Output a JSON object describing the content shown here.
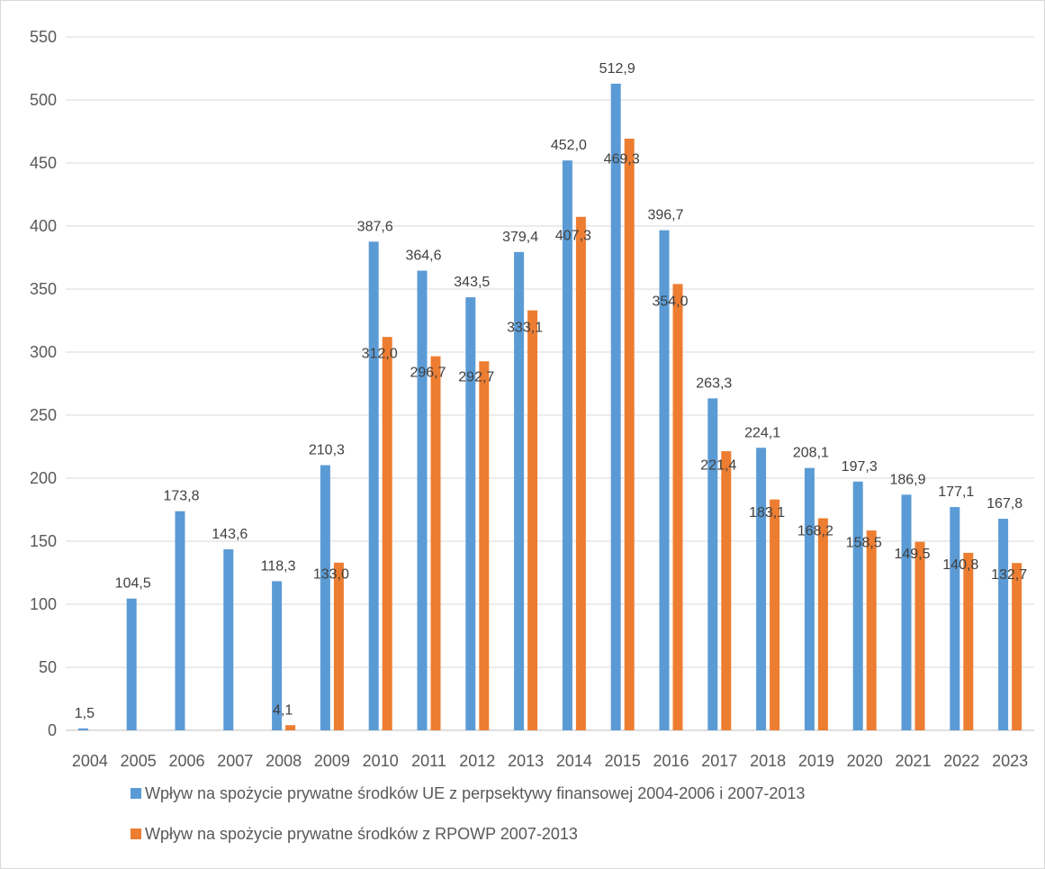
{
  "chart_data": {
    "type": "bar",
    "categories": [
      "2004",
      "2005",
      "2006",
      "2007",
      "2008",
      "2009",
      "2010",
      "2011",
      "2012",
      "2013",
      "2014",
      "2015",
      "2016",
      "2017",
      "2018",
      "2019",
      "2020",
      "2021",
      "2022",
      "2023"
    ],
    "series": [
      {
        "name": "Wpływ na spożycie prywatne środków UE z perpsektywy finansowej 2004-2006 i 2007-2013",
        "color": "#5b9bd5",
        "values": [
          1.5,
          104.5,
          173.8,
          143.6,
          118.3,
          210.3,
          387.6,
          364.6,
          343.5,
          379.4,
          452.0,
          512.9,
          396.7,
          263.3,
          224.1,
          208.1,
          197.3,
          186.9,
          177.1,
          167.8
        ],
        "labels": [
          "1,5",
          "104,5",
          "173,8",
          "143,6",
          "118,3",
          "210,3",
          "387,6",
          "364,6",
          "343,5",
          "379,4",
          "452,0",
          "512,9",
          "396,7",
          "263,3",
          "224,1",
          "208,1",
          "197,3",
          "186,9",
          "177,1",
          "167,8"
        ]
      },
      {
        "name": "Wpływ na spożycie prywatne środków z RPOWP 2007-2013",
        "color": "#ed7d31",
        "values": [
          null,
          null,
          null,
          null,
          4.1,
          133.0,
          312.0,
          296.7,
          292.7,
          333.1,
          407.3,
          469.3,
          354.0,
          221.4,
          183.1,
          168.2,
          158.5,
          149.5,
          140.8,
          132.7
        ],
        "labels": [
          null,
          null,
          null,
          null,
          "4,1",
          "133,0",
          "312,0",
          "296,7",
          "292,7",
          "333,1",
          "407,3",
          "469,3",
          "354,0",
          "221,4",
          "183,1",
          "168,2",
          "158,5",
          "149,5",
          "140,8",
          "132,7"
        ]
      }
    ],
    "yticks": [
      "0",
      "50",
      "100",
      "150",
      "200",
      "250",
      "300",
      "350",
      "400",
      "450",
      "500",
      "550"
    ],
    "ylim": [
      0,
      550
    ],
    "grid": true,
    "legend_position": "bottom"
  }
}
